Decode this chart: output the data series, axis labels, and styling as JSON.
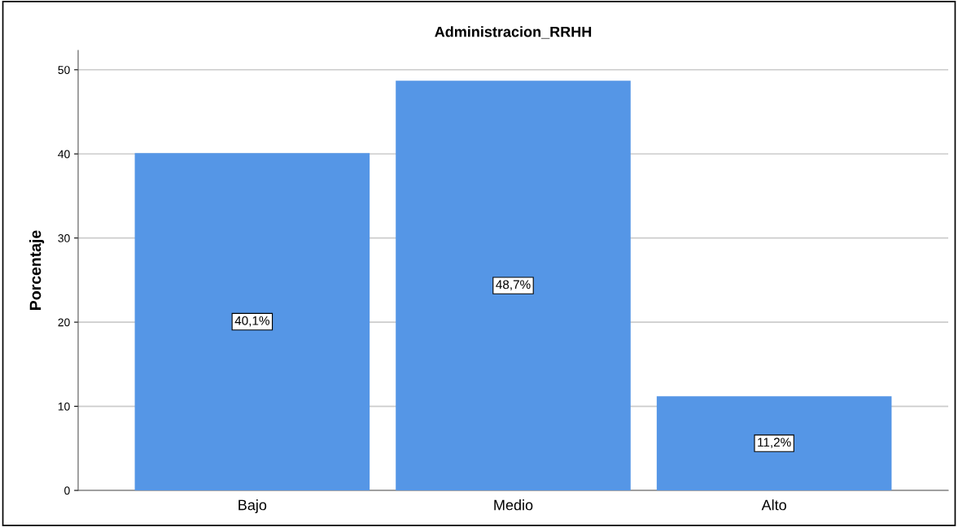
{
  "chart_data": {
    "type": "bar",
    "title": "Administracion_RRHH",
    "ylabel": "Porcentaje",
    "categories": [
      "Bajo",
      "Medio",
      "Alto"
    ],
    "values": [
      40.1,
      48.7,
      11.2
    ],
    "value_labels": [
      "40,1%",
      "48,7%",
      "11,2%"
    ],
    "color": "#5596e6",
    "ylim": [
      0,
      52.3
    ],
    "yticks": [
      0,
      10,
      20,
      30,
      40,
      50
    ],
    "grid": "y",
    "legend": false
  }
}
